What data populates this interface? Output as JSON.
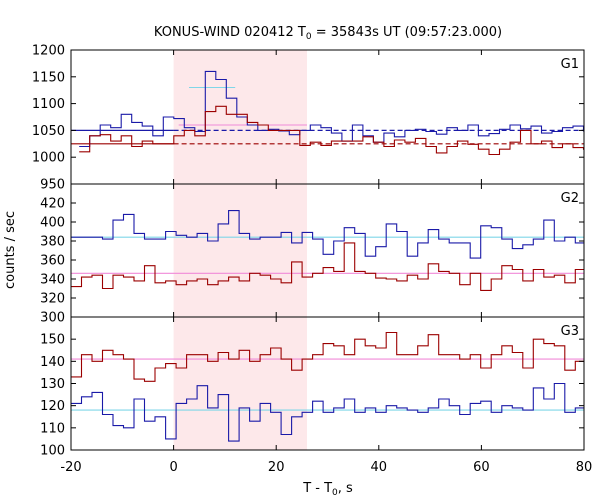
{
  "chart_data": {
    "type": "line",
    "title": "KONUS-WIND 020412 T0 = 35843s UT (09:57:23.000)",
    "title_parts": {
      "prefix": "KONUS-WIND 020412 T",
      "subscript": "0",
      "suffix": " = 35843s UT (09:57:23.000)"
    },
    "xlabel": "T - T0, s",
    "xlabel_parts": {
      "prefix": "T - T",
      "subscript": "0",
      "suffix": ", s"
    },
    "ylabel": "counts / sec",
    "xlim": [
      -20,
      80
    ],
    "x_ticks": [
      -20,
      0,
      20,
      40,
      60,
      80
    ],
    "highlight_interval": [
      0,
      26
    ],
    "colors": {
      "highlight": "#fde8ea",
      "blue": "#1a1aa8",
      "red": "#9b0000",
      "cyan": "#7fd6e8",
      "pink": "#f08ad8"
    },
    "panels": [
      {
        "label": "G1",
        "ylim": [
          950,
          1200
        ],
        "y_ticks": [
          950,
          1000,
          1050,
          1100,
          1150,
          1200
        ],
        "bin_width": 2.048,
        "x_start": -18.4,
        "series": [
          {
            "color": "blue",
            "values": [
              1020,
              1040,
              1060,
              1055,
              1080,
              1065,
              1058,
              1040,
              1075,
              1072,
              1055,
              1048,
              1160,
              1145,
              1110,
              1075,
              1060,
              1050,
              1052,
              1049,
              1042,
              1050,
              1060,
              1055,
              1045,
              1030,
              1060,
              1040,
              1028,
              1045,
              1038,
              1050,
              1052,
              1048,
              1043,
              1055,
              1050,
              1060,
              1040,
              1044,
              1052,
              1060,
              1053,
              1058,
              1045,
              1048,
              1055,
              1058,
              1049
            ]
          },
          {
            "color": "red",
            "values": [
              1010,
              1040,
              1042,
              1030,
              1040,
              1020,
              1030,
              1025,
              1025,
              1040,
              1050,
              1040,
              1085,
              1095,
              1080,
              1080,
              1065,
              1060,
              1050,
              1050,
              1050,
              1022,
              1028,
              1022,
              1030,
              1030,
              1030,
              1038,
              1028,
              1020,
              1032,
              1028,
              1035,
              1020,
              1008,
              1020,
              1030,
              1024,
              1015,
              1005,
              1015,
              1028,
              1050,
              1025,
              1030,
              1018,
              1025,
              1018,
              1015
            ]
          }
        ],
        "overlays": [
          {
            "color": "cyan",
            "x_from": 3.0,
            "x_to": 12.0,
            "values": [
              1130
            ]
          },
          {
            "color": "pink",
            "x_from": 1.0,
            "x_to": 26.0,
            "values": [
              1060
            ]
          }
        ],
        "backgrounds": [
          {
            "color": "blue",
            "style": "solid",
            "x_from": -20,
            "x_to": 0,
            "value": 1050
          },
          {
            "color": "blue",
            "style": "dashed",
            "x_from": 0,
            "x_to": 80,
            "value": 1050
          },
          {
            "color": "red",
            "style": "solid",
            "x_from": -20,
            "x_to": 0,
            "value": 1025
          },
          {
            "color": "red",
            "style": "dashed",
            "x_from": 0,
            "x_to": 80,
            "value": 1025
          }
        ]
      },
      {
        "label": "G2",
        "ylim": [
          300,
          440
        ],
        "y_ticks": [
          300,
          320,
          340,
          360,
          380,
          400,
          420
        ],
        "bin_width": 2.048,
        "x_start": -20,
        "series": [
          {
            "color": "blue",
            "values": [
              384,
              384,
              384,
              382,
              402,
              408,
              388,
              382,
              382,
              390,
              386,
              384,
              388,
              380,
              398,
              412,
              388,
              382,
              384,
              384,
              389,
              378,
              389,
              382,
              366,
              380,
              394,
              388,
              364,
              374,
              398,
              390,
              364,
              378,
              392,
              382,
              378,
              378,
              362,
              396,
              394,
              382,
              372,
              376,
              382,
              402,
              380,
              384,
              378,
              386
            ]
          },
          {
            "color": "red",
            "values": [
              332,
              342,
              344,
              330,
              344,
              342,
              338,
              354,
              336,
              338,
              334,
              338,
              340,
              334,
              338,
              342,
              338,
              346,
              344,
              340,
              336,
              358,
              342,
              346,
              352,
              348,
              378,
              348,
              346,
              341,
              340,
              338,
              344,
              340,
              356,
              348,
              346,
              334,
              346,
              328,
              340,
              354,
              350,
              338,
              350,
              342,
              344,
              336,
              350,
              334
            ]
          }
        ],
        "overlays": [
          {
            "color": "cyan",
            "x_from": -20,
            "x_to": 80,
            "values": [
              384
            ]
          },
          {
            "color": "pink",
            "x_from": -20,
            "x_to": 80,
            "values": [
              346
            ]
          }
        ],
        "backgrounds": []
      },
      {
        "label": "G3",
        "ylim": [
          100,
          160
        ],
        "y_ticks": [
          100,
          110,
          120,
          130,
          140,
          150
        ],
        "bin_width": 2.048,
        "x_start": -20,
        "series": [
          {
            "color": "red",
            "values": [
              133,
              143,
              140,
              145,
              143,
              141,
              132,
              131,
              137,
              139,
              137,
              143,
              143,
              140,
              144,
              141,
              145,
              140,
              143,
              146,
              141,
              136,
              141,
              143,
              148,
              147,
              143,
              150,
              147,
              146,
              153,
              143,
              143,
              147,
              152,
              143,
              143,
              141,
              143,
              137,
              143,
              147,
              144,
              137,
              150,
              148,
              147,
              136,
              140,
              140
            ]
          },
          {
            "color": "blue",
            "values": [
              121,
              124,
              126,
              116,
              111,
              110,
              123,
              113,
              115,
              105,
              121,
              123,
              129,
              119,
              125,
              104,
              119,
              113,
              121,
              117,
              107,
              115,
              117,
              122,
              117,
              119,
              123,
              117,
              119,
              117,
              120,
              119,
              118,
              117,
              119,
              123,
              120,
              116,
              121,
              122,
              117,
              120,
              119,
              118,
              128,
              123,
              130,
              117,
              119,
              121
            ]
          }
        ],
        "overlays": [
          {
            "color": "pink",
            "x_from": -20,
            "x_to": 80,
            "values": [
              141
            ]
          },
          {
            "color": "cyan",
            "x_from": -20,
            "x_to": 80,
            "values": [
              118
            ]
          }
        ],
        "backgrounds": []
      }
    ]
  }
}
